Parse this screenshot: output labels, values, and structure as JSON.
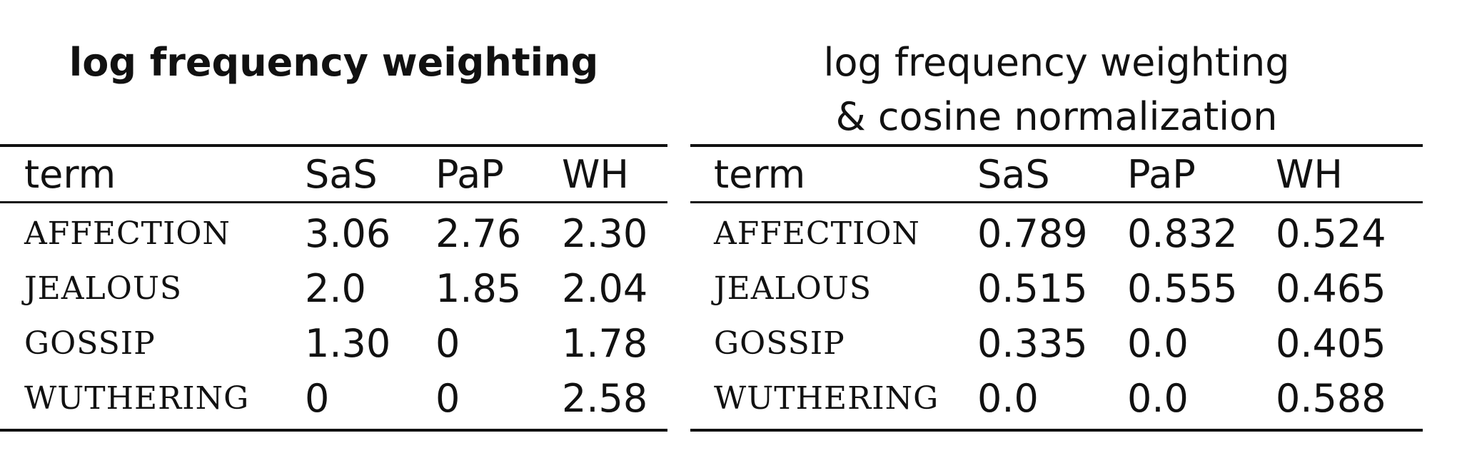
{
  "left": {
    "title": "log frequency weighting",
    "columns": [
      "term",
      "SaS",
      "PaP",
      "WH"
    ],
    "rows": [
      {
        "term": "AFFECTION",
        "values": [
          "3.06",
          "2.76",
          "2.30"
        ]
      },
      {
        "term": "JEALOUS",
        "values": [
          "2.0",
          "1.85",
          "2.04"
        ]
      },
      {
        "term": "GOSSIP",
        "values": [
          "1.30",
          "0",
          "1.78"
        ]
      },
      {
        "term": "WUTHERING",
        "values": [
          "0",
          "0",
          "2.58"
        ]
      }
    ]
  },
  "right": {
    "title_line1": "log frequency weighting",
    "title_line2": "& cosine normalization",
    "columns": [
      "term",
      "SaS",
      "PaP",
      "WH"
    ],
    "rows": [
      {
        "term": "AFFECTION",
        "values": [
          "0.789",
          "0.832",
          "0.524"
        ]
      },
      {
        "term": "JEALOUS",
        "values": [
          "0.515",
          "0.555",
          "0.465"
        ]
      },
      {
        "term": "GOSSIP",
        "values": [
          "0.335",
          "0.0",
          "0.405"
        ]
      },
      {
        "term": "WUTHERING",
        "values": [
          "0.0",
          "0.0",
          "0.588"
        ]
      }
    ]
  }
}
